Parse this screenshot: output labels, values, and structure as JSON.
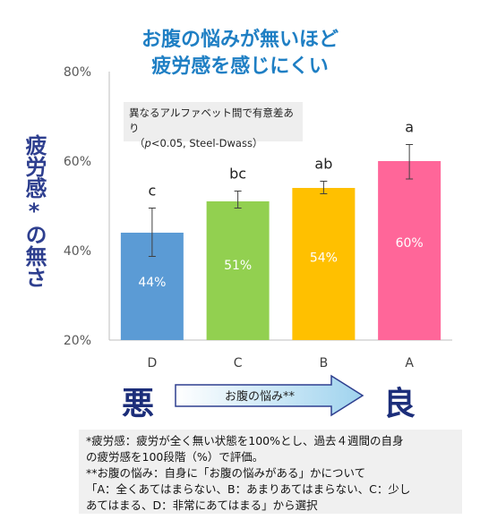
{
  "title_line1": "お腹の悩みが無いほど",
  "title_line2": "疲労感を感じにくい",
  "ylabel": "疲労感*の無さ",
  "note": {
    "line1": "異なるアルファベット間で有意差あり",
    "line2_prefix": "（",
    "line2_p": "p",
    "line2_rest": "<0.05, Steel-Dwass）"
  },
  "arrow_label": "お腹の悩み**",
  "bad_label": "悪",
  "good_label": "良",
  "footer": {
    "line1": "*疲労感：疲労が全く無い状態を100%とし、過去４週間の自身",
    "line2": "の疲労感を100段階（%）で評価。",
    "line3": "**お腹の悩み：自身に「お腹の悩みがある」かについて",
    "line4": "「A：全くあてはまらない、B：あまりあてはまらない、C：少し",
    "line5": "あてはまる、D：非常にあてはまる」から選択"
  },
  "colors": {
    "D": "#5b9bd5",
    "C": "#92d050",
    "B": "#ffc000",
    "A": "#ff6699",
    "title": "#1f7fc4",
    "ylabel": "#2e3f8f"
  },
  "chart_data": {
    "type": "bar",
    "categories": [
      "D",
      "C",
      "B",
      "A"
    ],
    "values": [
      44,
      51,
      54,
      60
    ],
    "value_labels": [
      "44%",
      "51%",
      "54%",
      "60%"
    ],
    "error_upper": [
      49.5,
      53.3,
      55.5,
      63.7
    ],
    "error_lower": [
      38.7,
      49.5,
      52.7,
      56.0
    ],
    "significance_letters": [
      "c",
      "bc",
      "ab",
      "a"
    ],
    "ylim": [
      20,
      80
    ],
    "yticks": [
      20,
      40,
      60,
      80
    ],
    "ytick_labels": [
      "20%",
      "40%",
      "60%",
      "80%"
    ],
    "grid": false,
    "xlabel": "",
    "ylabel": "疲労感*の無さ"
  }
}
